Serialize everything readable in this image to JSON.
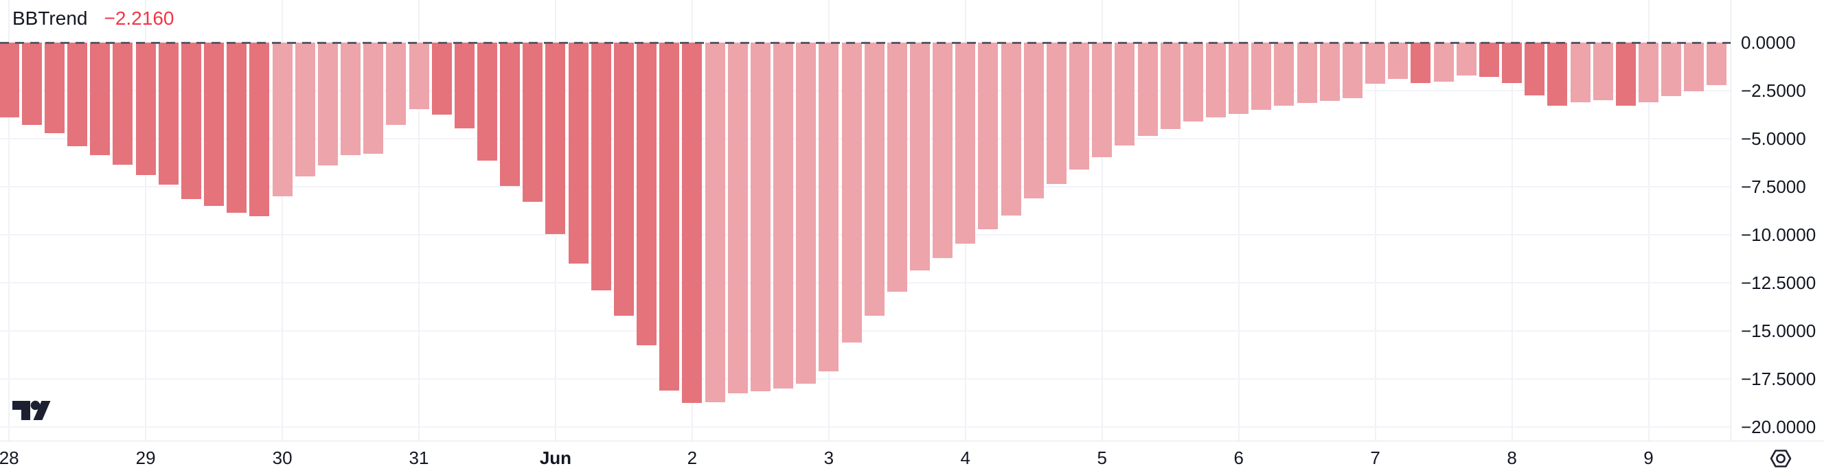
{
  "legend": {
    "indicator": "BBTrend",
    "value": "−2.2160"
  },
  "colors": {
    "falling_bar": "#e4737c",
    "rising_bar": "#eda4ab",
    "value_text": "#f23645",
    "axis_text": "#131722",
    "grid": "#f2f3f8",
    "zero_line": "#545b66",
    "logo": "#1c2030"
  },
  "price_axis": {
    "labels": [
      "0.0000",
      "−2.5000",
      "−5.0000",
      "−7.5000",
      "−10.0000",
      "−12.5000",
      "−15.0000",
      "−17.5000",
      "−20.0000"
    ],
    "values": [
      0,
      -2.5,
      -5,
      -7.5,
      -10,
      -12.5,
      -15,
      -17.5,
      -20
    ]
  },
  "time_axis": {
    "ticks": [
      {
        "label": "28",
        "bar_index": 0,
        "bold": false
      },
      {
        "label": "29",
        "bar_index": 6,
        "bold": false
      },
      {
        "label": "30",
        "bar_index": 12,
        "bold": false
      },
      {
        "label": "31",
        "bar_index": 18,
        "bold": false
      },
      {
        "label": "Jun",
        "bar_index": 24,
        "bold": true
      },
      {
        "label": "2",
        "bar_index": 30,
        "bold": false
      },
      {
        "label": "3",
        "bar_index": 36,
        "bold": false
      },
      {
        "label": "4",
        "bar_index": 42,
        "bold": false
      },
      {
        "label": "5",
        "bar_index": 48,
        "bold": false
      },
      {
        "label": "6",
        "bar_index": 54,
        "bold": false
      },
      {
        "label": "7",
        "bar_index": 60,
        "bold": false
      },
      {
        "label": "8",
        "bar_index": 66,
        "bold": false
      },
      {
        "label": "9",
        "bar_index": 72,
        "bold": false
      }
    ]
  },
  "chart_data": {
    "type": "bar",
    "title": "BBTrend",
    "current_value": -2.216,
    "timeframe_bars_per_day": 6,
    "ylim": [
      -20,
      0
    ],
    "grid_step": 2.5,
    "legend_position": "top-left",
    "x_tick_labels": [
      "28",
      "29",
      "30",
      "31",
      "Jun",
      "2",
      "3",
      "4",
      "5",
      "6",
      "7",
      "8",
      "9"
    ],
    "series_note": "all values negative; dark bars = falling vs previous, light bars = rising vs previous",
    "bars": [
      {
        "v": -3.9,
        "trend": "falling"
      },
      {
        "v": -4.3,
        "trend": "falling"
      },
      {
        "v": -4.7,
        "trend": "falling"
      },
      {
        "v": -5.4,
        "trend": "falling"
      },
      {
        "v": -5.85,
        "trend": "falling"
      },
      {
        "v": -6.35,
        "trend": "falling"
      },
      {
        "v": -6.9,
        "trend": "falling"
      },
      {
        "v": -7.4,
        "trend": "falling"
      },
      {
        "v": -8.15,
        "trend": "falling"
      },
      {
        "v": -8.5,
        "trend": "falling"
      },
      {
        "v": -8.85,
        "trend": "falling"
      },
      {
        "v": -9.05,
        "trend": "falling"
      },
      {
        "v": -8.0,
        "trend": "rising"
      },
      {
        "v": -6.95,
        "trend": "rising"
      },
      {
        "v": -6.4,
        "trend": "rising"
      },
      {
        "v": -5.85,
        "trend": "rising"
      },
      {
        "v": -5.8,
        "trend": "rising"
      },
      {
        "v": -4.3,
        "trend": "rising"
      },
      {
        "v": -3.45,
        "trend": "rising"
      },
      {
        "v": -3.75,
        "trend": "falling"
      },
      {
        "v": -4.45,
        "trend": "falling"
      },
      {
        "v": -6.15,
        "trend": "falling"
      },
      {
        "v": -7.45,
        "trend": "falling"
      },
      {
        "v": -8.3,
        "trend": "falling"
      },
      {
        "v": -9.95,
        "trend": "falling"
      },
      {
        "v": -11.5,
        "trend": "falling"
      },
      {
        "v": -12.9,
        "trend": "falling"
      },
      {
        "v": -14.2,
        "trend": "falling"
      },
      {
        "v": -15.75,
        "trend": "falling"
      },
      {
        "v": -18.1,
        "trend": "falling"
      },
      {
        "v": -18.75,
        "trend": "falling"
      },
      {
        "v": -18.7,
        "trend": "rising"
      },
      {
        "v": -18.25,
        "trend": "rising"
      },
      {
        "v": -18.15,
        "trend": "rising"
      },
      {
        "v": -18.0,
        "trend": "rising"
      },
      {
        "v": -17.75,
        "trend": "rising"
      },
      {
        "v": -17.1,
        "trend": "rising"
      },
      {
        "v": -15.6,
        "trend": "rising"
      },
      {
        "v": -14.2,
        "trend": "rising"
      },
      {
        "v": -12.95,
        "trend": "rising"
      },
      {
        "v": -11.85,
        "trend": "rising"
      },
      {
        "v": -11.2,
        "trend": "rising"
      },
      {
        "v": -10.45,
        "trend": "rising"
      },
      {
        "v": -9.7,
        "trend": "rising"
      },
      {
        "v": -9.0,
        "trend": "rising"
      },
      {
        "v": -8.1,
        "trend": "rising"
      },
      {
        "v": -7.35,
        "trend": "rising"
      },
      {
        "v": -6.6,
        "trend": "rising"
      },
      {
        "v": -5.95,
        "trend": "rising"
      },
      {
        "v": -5.35,
        "trend": "rising"
      },
      {
        "v": -4.85,
        "trend": "rising"
      },
      {
        "v": -4.5,
        "trend": "rising"
      },
      {
        "v": -4.1,
        "trend": "rising"
      },
      {
        "v": -3.9,
        "trend": "rising"
      },
      {
        "v": -3.7,
        "trend": "rising"
      },
      {
        "v": -3.5,
        "trend": "rising"
      },
      {
        "v": -3.3,
        "trend": "rising"
      },
      {
        "v": -3.15,
        "trend": "rising"
      },
      {
        "v": -3.05,
        "trend": "rising"
      },
      {
        "v": -2.9,
        "trend": "rising"
      },
      {
        "v": -2.15,
        "trend": "rising"
      },
      {
        "v": -1.9,
        "trend": "rising"
      },
      {
        "v": -2.1,
        "trend": "falling"
      },
      {
        "v": -2.05,
        "trend": "rising"
      },
      {
        "v": -1.7,
        "trend": "rising"
      },
      {
        "v": -1.8,
        "trend": "falling"
      },
      {
        "v": -2.1,
        "trend": "falling"
      },
      {
        "v": -2.75,
        "trend": "falling"
      },
      {
        "v": -3.3,
        "trend": "falling"
      },
      {
        "v": -3.1,
        "trend": "rising"
      },
      {
        "v": -3.0,
        "trend": "rising"
      },
      {
        "v": -3.3,
        "trend": "falling"
      },
      {
        "v": -3.1,
        "trend": "rising"
      },
      {
        "v": -2.8,
        "trend": "rising"
      },
      {
        "v": -2.55,
        "trend": "rising"
      },
      {
        "v": -2.216,
        "trend": "rising"
      }
    ]
  }
}
